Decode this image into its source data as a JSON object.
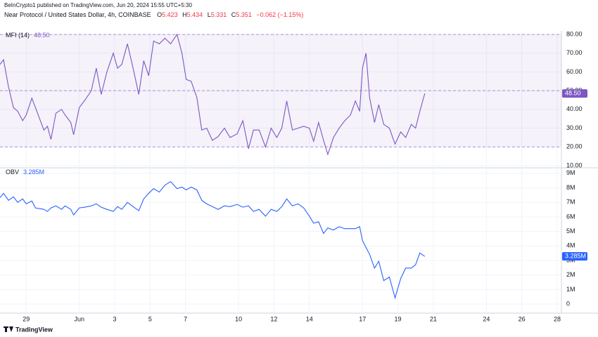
{
  "header": {
    "attribution": "BeInCrypto1 published on TradingView.com, Jun 20, 2024 15:55 UTC+5:30",
    "symbol": "Near Protocol / United States Dollar, 4h, COINBASE",
    "ohlc": [
      {
        "key": "O",
        "value": "5.423"
      },
      {
        "key": "H",
        "value": "5.434"
      },
      {
        "key": "L",
        "value": "5.331"
      },
      {
        "key": "C",
        "value": "5.351"
      }
    ],
    "change": "−0.062 (−1.15%)"
  },
  "chart_data": [
    {
      "type": "line",
      "series": [
        {
          "name": "MFI (14)",
          "color": "#7e57c2",
          "current_value": {
            "value": 48.5,
            "label": "48.50"
          },
          "values": [
            64,
            66.5,
            52,
            41,
            39,
            34,
            37,
            46,
            41,
            29,
            31,
            24,
            38,
            40,
            37,
            33,
            26.5,
            41,
            45,
            50,
            62,
            48,
            60,
            70,
            62,
            64,
            75,
            62,
            48,
            66,
            58,
            76.5,
            75,
            78,
            75,
            80,
            70,
            56,
            55,
            46.5,
            29,
            30,
            23.5,
            25.5,
            30,
            25,
            27,
            34,
            19,
            29,
            29,
            20,
            30,
            25,
            30,
            44.5,
            29,
            30,
            31,
            30,
            23,
            33,
            23.5,
            16,
            25,
            30,
            34,
            37,
            44.5,
            39,
            62,
            70,
            46.5,
            33,
            42.5,
            32,
            30,
            21.5,
            28,
            25,
            32,
            30,
            39,
            48.5
          ]
        }
      ],
      "x": [
        -1.48,
        -1.28,
        -1,
        -0.72,
        -0.48,
        -0.2,
        0,
        0.32,
        0.52,
        1,
        1.2,
        1.4,
        1.68,
        2,
        2.2,
        2.52,
        2.68,
        3,
        3.32,
        3.68,
        3.96,
        4.24,
        4.56,
        4.92,
        5.16,
        5.4,
        5.72,
        6.04,
        6.36,
        6.64,
        6.92,
        7.2,
        7.52,
        7.84,
        8.16,
        8.52,
        8.8,
        9.04,
        9.32,
        9.64,
        9.92,
        10.2,
        10.52,
        10.84,
        11.2,
        11.52,
        11.92,
        12.24,
        12.56,
        12.84,
        13.16,
        13.52,
        13.84,
        14.16,
        14.44,
        14.72,
        15.04,
        15.36,
        15.68,
        16,
        16.24,
        16.52,
        16.8,
        17.04,
        17.36,
        17.68,
        18,
        18.32,
        18.6,
        18.84,
        19,
        19.2,
        19.4,
        19.68,
        19.92,
        20.2,
        20.52,
        20.84,
        21.16,
        21.44,
        21.76,
        22,
        22.24,
        22.52
      ],
      "xlim": [
        -1.48,
        30.24
      ],
      "ylim": [
        8.85,
        81.9
      ],
      "yticks": [
        {
          "value": 80,
          "label": "80.00"
        },
        {
          "value": 70,
          "label": "70.00"
        },
        {
          "value": 60,
          "label": "60.00"
        },
        {
          "value": 50,
          "label": "50.00"
        },
        {
          "value": 40,
          "label": "40.00"
        },
        {
          "value": 30,
          "label": "30.00"
        },
        {
          "value": 20,
          "label": "20.00"
        },
        {
          "value": 10,
          "label": "10.00"
        }
      ],
      "bands": [
        80,
        50,
        20
      ],
      "band_color": "#7e57c2",
      "grid": true
    },
    {
      "type": "line",
      "series": [
        {
          "name": "OBV",
          "color": "#2962ff",
          "current_value": {
            "value": 3285000,
            "label": "3.285M"
          },
          "values": [
            7330000,
            7620000,
            7140000,
            7380000,
            7000000,
            7240000,
            6900000,
            7100000,
            6620000,
            6520000,
            6380000,
            6620000,
            6760000,
            6520000,
            6760000,
            6520000,
            6140000,
            6620000,
            6670000,
            6760000,
            6900000,
            6670000,
            6520000,
            6380000,
            6710000,
            6520000,
            7000000,
            6710000,
            6430000,
            7240000,
            7620000,
            7950000,
            7710000,
            8190000,
            8430000,
            7950000,
            8050000,
            7860000,
            8050000,
            7860000,
            7140000,
            6900000,
            6710000,
            6520000,
            6760000,
            6710000,
            6860000,
            6670000,
            6760000,
            6380000,
            6520000,
            6050000,
            6520000,
            6380000,
            6710000,
            7240000,
            6760000,
            6900000,
            6620000,
            6050000,
            5570000,
            5670000,
            4860000,
            5240000,
            5100000,
            5330000,
            5190000,
            5190000,
            5190000,
            5330000,
            4380000,
            3900000,
            3430000,
            2480000,
            2950000,
            1620000,
            1860000,
            430000,
            1760000,
            2480000,
            2480000,
            2710000,
            3520000,
            3285000
          ]
        }
      ],
      "x": [
        -1.48,
        -1.28,
        -1,
        -0.72,
        -0.48,
        -0.2,
        0,
        0.32,
        0.52,
        1,
        1.2,
        1.4,
        1.68,
        2,
        2.2,
        2.52,
        2.68,
        3,
        3.32,
        3.68,
        3.96,
        4.24,
        4.56,
        4.92,
        5.16,
        5.4,
        5.72,
        6.04,
        6.36,
        6.64,
        6.92,
        7.2,
        7.52,
        7.84,
        8.16,
        8.52,
        8.8,
        9.04,
        9.32,
        9.64,
        9.92,
        10.2,
        10.52,
        10.84,
        11.2,
        11.52,
        11.92,
        12.24,
        12.56,
        12.84,
        13.16,
        13.52,
        13.84,
        14.16,
        14.44,
        14.72,
        15.04,
        15.36,
        15.68,
        16,
        16.24,
        16.52,
        16.8,
        17.04,
        17.36,
        17.68,
        18,
        18.32,
        18.6,
        18.84,
        19,
        19.2,
        19.4,
        19.68,
        19.92,
        20.2,
        20.52,
        20.84,
        21.16,
        21.44,
        21.76,
        22,
        22.24,
        22.52
      ],
      "xlim": [
        -1.48,
        30.24
      ],
      "ylim": [
        -620000,
        9380000
      ],
      "yticks": [
        {
          "value": 9000000,
          "label": "9M"
        },
        {
          "value": 8000000,
          "label": "8M"
        },
        {
          "value": 7000000,
          "label": "7M"
        },
        {
          "value": 6000000,
          "label": "6M"
        },
        {
          "value": 5000000,
          "label": "5M"
        },
        {
          "value": 4000000,
          "label": "4M"
        },
        {
          "value": 3000000,
          "label": "3M"
        },
        {
          "value": 2000000,
          "label": "2M"
        },
        {
          "value": 1000000,
          "label": "1M"
        },
        0
      ],
      "xticks": [
        {
          "value": 0,
          "label": "29"
        },
        {
          "value": 3,
          "label": "Jun"
        },
        {
          "value": 5,
          "label": "3"
        },
        {
          "value": 7,
          "label": "5"
        },
        {
          "value": 9,
          "label": "7"
        },
        {
          "value": 12,
          "label": "10"
        },
        {
          "value": 14,
          "label": "12"
        },
        {
          "value": 16,
          "label": "14"
        },
        {
          "value": 19,
          "label": "17"
        },
        {
          "value": 21,
          "label": "19"
        },
        {
          "value": 23,
          "label": "21"
        },
        {
          "value": 26,
          "label": "24"
        },
        {
          "value": 28,
          "label": "26"
        },
        {
          "value": 30,
          "label": "28"
        }
      ],
      "grid": true
    }
  ],
  "footer": {
    "brand": "TradingView"
  }
}
